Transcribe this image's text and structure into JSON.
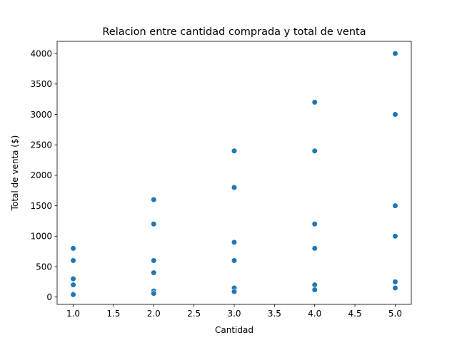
{
  "chart_data": {
    "type": "scatter",
    "title": "Relacion entre cantidad comprada y total de venta",
    "xlabel": "Cantidad",
    "ylabel": "Total de venta ($)",
    "xlim": [
      0.8,
      5.2
    ],
    "ylim": [
      -120,
      4200
    ],
    "x_ticks": [
      1.0,
      1.5,
      2.0,
      2.5,
      3.0,
      3.5,
      4.0,
      4.5,
      5.0
    ],
    "x_tick_labels": [
      "1.0",
      "1.5",
      "2.0",
      "2.5",
      "3.0",
      "3.5",
      "4.0",
      "4.5",
      "5.0"
    ],
    "y_ticks": [
      0,
      500,
      1000,
      1500,
      2000,
      2500,
      3000,
      3500,
      4000
    ],
    "y_tick_labels": [
      "0",
      "500",
      "1000",
      "1500",
      "2000",
      "2500",
      "3000",
      "3500",
      "4000"
    ],
    "grid": false,
    "marker_color": "#1f77b4",
    "series": [
      {
        "points": [
          {
            "x": 1,
            "y": 800
          },
          {
            "x": 1,
            "y": 600
          },
          {
            "x": 1,
            "y": 300
          },
          {
            "x": 1,
            "y": 200
          },
          {
            "x": 1,
            "y": 50
          },
          {
            "x": 1,
            "y": 40
          },
          {
            "x": 2,
            "y": 1600
          },
          {
            "x": 2,
            "y": 1200
          },
          {
            "x": 2,
            "y": 600
          },
          {
            "x": 2,
            "y": 400
          },
          {
            "x": 2,
            "y": 100
          },
          {
            "x": 2,
            "y": 60
          },
          {
            "x": 3,
            "y": 2400
          },
          {
            "x": 3,
            "y": 1800
          },
          {
            "x": 3,
            "y": 900
          },
          {
            "x": 3,
            "y": 600
          },
          {
            "x": 3,
            "y": 150
          },
          {
            "x": 3,
            "y": 90
          },
          {
            "x": 4,
            "y": 3200
          },
          {
            "x": 4,
            "y": 2400
          },
          {
            "x": 4,
            "y": 1200
          },
          {
            "x": 4,
            "y": 800
          },
          {
            "x": 4,
            "y": 200
          },
          {
            "x": 4,
            "y": 120
          },
          {
            "x": 5,
            "y": 4000
          },
          {
            "x": 5,
            "y": 3000
          },
          {
            "x": 5,
            "y": 1500
          },
          {
            "x": 5,
            "y": 1000
          },
          {
            "x": 5,
            "y": 250
          },
          {
            "x": 5,
            "y": 150
          }
        ]
      }
    ]
  }
}
